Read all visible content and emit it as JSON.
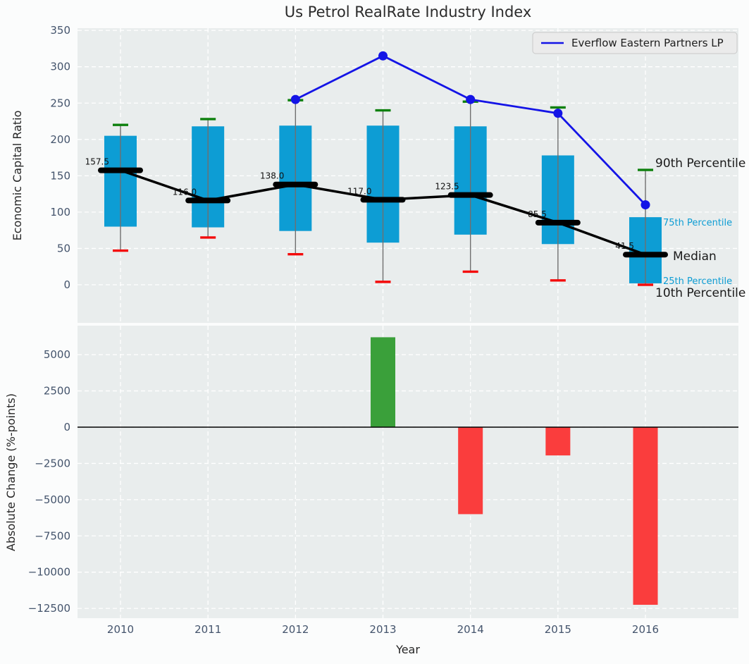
{
  "title": "Us Petrol RealRate Industry Index",
  "colors": {
    "figure_background": "#fbfcfc",
    "plot_background": "#e9eded",
    "box_fill": "#0d9dd4",
    "p90_cap": "#0d800d",
    "p10_cap": "#f40b0b",
    "median_line": "#000000",
    "whisker": "#6f6f6f",
    "company_line": "#1414e6",
    "bar_positive": "#3aa03a",
    "bar_negative": "#fa3d3d",
    "tick_label": "#44546c"
  },
  "chart_data": [
    {
      "id": "percentile_chart",
      "type": "boxplot+line",
      "title": "Us Petrol RealRate Industry Index",
      "ylabel": "Economic Capital Ratio",
      "x": [
        2010,
        2011,
        2012,
        2013,
        2014,
        2015,
        2016
      ],
      "ylim": [
        -52,
        353
      ],
      "yticks": [
        0,
        50,
        100,
        150,
        200,
        250,
        300,
        350
      ],
      "grid": true,
      "percentiles": {
        "p90": [
          220,
          228,
          254,
          240,
          252,
          244,
          158
        ],
        "p75": [
          205,
          218,
          219,
          219,
          218,
          178,
          93
        ],
        "median": [
          157.5,
          116.0,
          138.0,
          117.0,
          123.5,
          85.5,
          41.5
        ],
        "p25": [
          80,
          79,
          74,
          58,
          69,
          56,
          2
        ],
        "p10": [
          47,
          65,
          42,
          4,
          18,
          6,
          0
        ]
      },
      "median_labels": [
        "157.5",
        "116.0",
        "138.0",
        "117.0",
        "123.5",
        "85.5",
        "41.5"
      ],
      "company_series": {
        "name": "Everflow Eastern Partners LP",
        "x": [
          2012,
          2013,
          2014,
          2015,
          2016
        ],
        "values": [
          255,
          315,
          255,
          236,
          110
        ],
        "color": "#1414e6"
      },
      "legend": {
        "label": "Everflow Eastern Partners LP",
        "position": "upper right"
      },
      "annotations": [
        {
          "text": "90th Percentile",
          "size": 17,
          "color": "#1a1a1a"
        },
        {
          "text": "75th Percentile",
          "size": 13,
          "color": "#0d9dd4"
        },
        {
          "text": "Median",
          "size": 17,
          "color": "#1a1a1a"
        },
        {
          "text": "25th Percentile",
          "size": 13,
          "color": "#0d9dd4"
        },
        {
          "text": "10th Percentile",
          "size": 17,
          "color": "#1a1a1a"
        }
      ]
    },
    {
      "id": "change_chart",
      "type": "bar",
      "ylabel": "Absolute Change (%-points)",
      "xlabel": "Year",
      "categories": [
        2010,
        2011,
        2012,
        2013,
        2014,
        2015,
        2016
      ],
      "values": [
        null,
        null,
        null,
        6200,
        -6000,
        -1950,
        -12250
      ],
      "yticks": [
        5000,
        2500,
        0,
        -2500,
        -5000,
        -7500,
        -10000,
        -12500
      ],
      "ylim": [
        -13100,
        6950
      ],
      "grid": true,
      "zero_line": true
    }
  ]
}
